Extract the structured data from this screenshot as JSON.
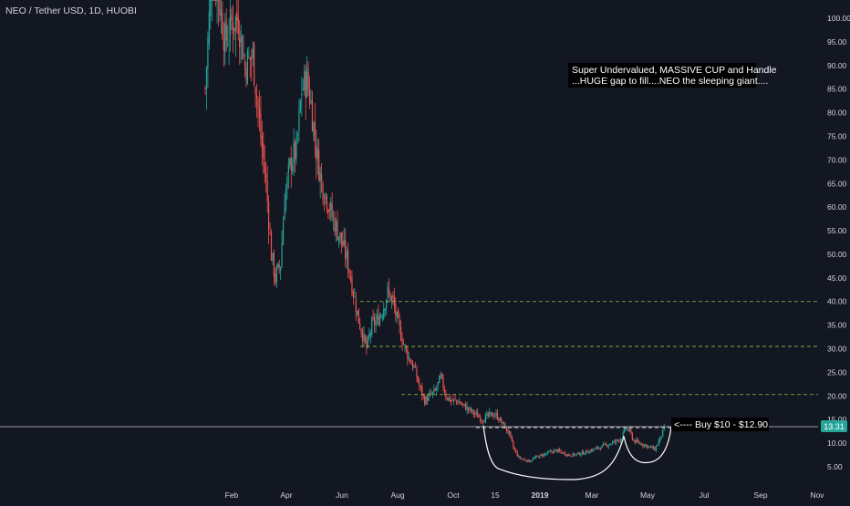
{
  "header": {
    "symbol": "NEO / Tether USD, 1D, HUOBI"
  },
  "annotations": {
    "note_line1": "Super Undervalued, MASSIVE CUP and Handle",
    "note_line2": "...HUGE gap to fill....NEO the sleeping giant....",
    "buy_label": "<---- Buy $10 - $12.90"
  },
  "price_axis": {
    "ticks": [
      "100.00",
      "95.00",
      "90.00",
      "85.00",
      "80.00",
      "75.00",
      "70.00",
      "65.00",
      "60.00",
      "55.00",
      "50.00",
      "45.00",
      "40.00",
      "35.00",
      "30.00",
      "25.00",
      "20.00",
      "15.00",
      "10.00",
      "5.00"
    ],
    "current_price": "13.31"
  },
  "time_axis": {
    "labels": [
      "Feb",
      "Apr",
      "Jun",
      "Aug",
      "Oct",
      "15",
      "2019",
      "Mar",
      "May",
      "Jul",
      "Sep",
      "Nov"
    ]
  },
  "colors": {
    "background": "#131722",
    "up": "#26a69a",
    "down": "#ef5350",
    "dashed_levels": "#8bc34a",
    "price_line": "#9e9e9e",
    "text": "#d1d4dc"
  },
  "chart_data": {
    "type": "candlestick",
    "title": "NEO / Tether USD, 1D, HUOBI",
    "ylim": [
      0,
      104
    ],
    "x_labels": [
      "Feb",
      "Apr",
      "Jun",
      "Aug",
      "Oct",
      "15",
      "2019",
      "Mar",
      "May",
      "Jul",
      "Sep",
      "Nov"
    ],
    "y_ticks": [
      100,
      95,
      90,
      85,
      80,
      75,
      70,
      65,
      60,
      55,
      50,
      45,
      40,
      35,
      30,
      25,
      20,
      15,
      10,
      5
    ],
    "current_price": 13.31,
    "price_line": 13.31,
    "dashed_levels": [
      40.0,
      30.5,
      20.3,
      13.3
    ],
    "path_close": [
      [
        0,
        85
      ],
      [
        5,
        110
      ],
      [
        10,
        105
      ],
      [
        15,
        95
      ],
      [
        20,
        99
      ],
      [
        25,
        100
      ],
      [
        30,
        90
      ],
      [
        36,
        92
      ],
      [
        42,
        75
      ],
      [
        46,
        65
      ],
      [
        50,
        50
      ],
      [
        53,
        45
      ],
      [
        57,
        48
      ],
      [
        60,
        62
      ],
      [
        65,
        70
      ],
      [
        69,
        72
      ],
      [
        73,
        85
      ],
      [
        77,
        87
      ],
      [
        80,
        82
      ],
      [
        84,
        72
      ],
      [
        88,
        65
      ],
      [
        92,
        62
      ],
      [
        96,
        58
      ],
      [
        100,
        55
      ],
      [
        104,
        52
      ],
      [
        108,
        48
      ],
      [
        112,
        42
      ],
      [
        116,
        36
      ],
      [
        119,
        33
      ],
      [
        122,
        30
      ],
      [
        126,
        35
      ],
      [
        130,
        36
      ],
      [
        134,
        38
      ],
      [
        138,
        42
      ],
      [
        142,
        40
      ],
      [
        146,
        35
      ],
      [
        150,
        31
      ],
      [
        154,
        28
      ],
      [
        158,
        26
      ],
      [
        162,
        22
      ],
      [
        166,
        19
      ],
      [
        170,
        20
      ],
      [
        174,
        21
      ],
      [
        178,
        24
      ],
      [
        182,
        20
      ],
      [
        186,
        19
      ],
      [
        190,
        19
      ],
      [
        195,
        18
      ],
      [
        200,
        17
      ],
      [
        205,
        16
      ],
      [
        210,
        15
      ],
      [
        215,
        16
      ],
      [
        220,
        16
      ],
      [
        225,
        14
      ],
      [
        230,
        12
      ],
      [
        233,
        9
      ],
      [
        237,
        7
      ],
      [
        241,
        6.5
      ],
      [
        245,
        6.2
      ],
      [
        250,
        7
      ],
      [
        255,
        7.5
      ],
      [
        260,
        8
      ],
      [
        265,
        8.5
      ],
      [
        270,
        8
      ],
      [
        275,
        7.5
      ],
      [
        280,
        7.6
      ],
      [
        285,
        7.9
      ],
      [
        290,
        8.3
      ],
      [
        295,
        8.8
      ],
      [
        300,
        9.3
      ],
      [
        305,
        9.8
      ],
      [
        310,
        10.3
      ],
      [
        315,
        11.2
      ],
      [
        318,
        13.2
      ],
      [
        321,
        12.5
      ],
      [
        324,
        10.5
      ],
      [
        328,
        10
      ],
      [
        332,
        9.7
      ],
      [
        336,
        9.2
      ],
      [
        340,
        8.7
      ],
      [
        344,
        11
      ],
      [
        347,
        13
      ]
    ],
    "annotations": [
      "Super Undervalued, MASSIVE CUP and Handle",
      "...HUGE gap to fill....NEO the sleeping giant....",
      "<---- Buy $10 - $12.90"
    ]
  }
}
